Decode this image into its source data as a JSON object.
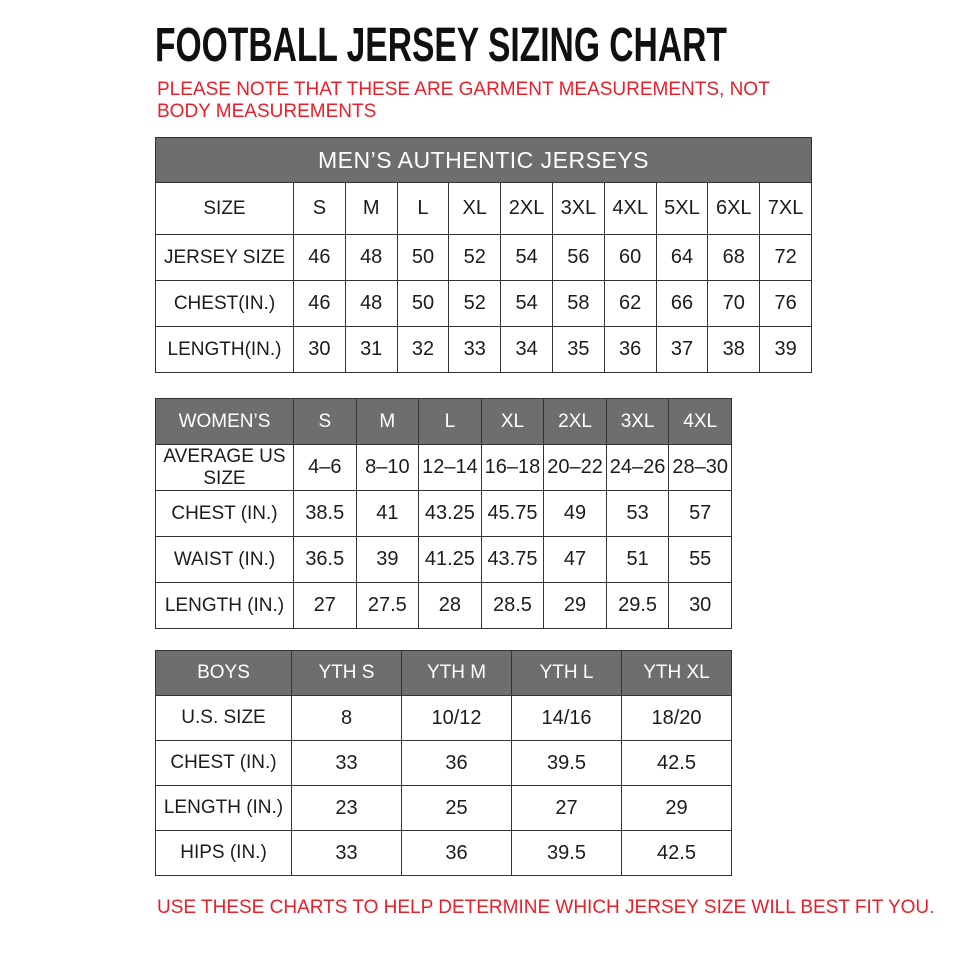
{
  "page": {
    "title": "FOOTBALL JERSEY SIZING CHART",
    "note": "PLEASE NOTE THAT THESE ARE GARMENT MEASUREMENTS, NOT BODY MEASUREMENTS",
    "footer": "USE THESE CHARTS TO HELP DETERMINE WHICH JERSEY SIZE WILL BEST FIT YOU.",
    "colors": {
      "accent_red": "#e8202a",
      "header_gray": "#6e6e6e",
      "border": "#333333",
      "text": "#1c1c1c"
    }
  },
  "tables": {
    "mens": {
      "title": "MEN’S AUTHENTIC JERSEYS",
      "head_style": "plain",
      "head": [
        "SIZE",
        "S",
        "M",
        "L",
        "XL",
        "2XL",
        "3XL",
        "4XL",
        "5XL",
        "6XL",
        "7XL"
      ],
      "rows": [
        {
          "label": "JERSEY SIZE",
          "values": [
            "46",
            "48",
            "50",
            "52",
            "54",
            "56",
            "60",
            "64",
            "68",
            "72"
          ]
        },
        {
          "label": "CHEST(IN.)",
          "values": [
            "46",
            "48",
            "50",
            "52",
            "54",
            "58",
            "62",
            "66",
            "70",
            "76"
          ]
        },
        {
          "label": "LENGTH(IN.)",
          "values": [
            "30",
            "31",
            "32",
            "33",
            "34",
            "35",
            "36",
            "37",
            "38",
            "39"
          ]
        }
      ]
    },
    "womens": {
      "head_style": "gray",
      "head": [
        "WOMEN’S",
        "S",
        "M",
        "L",
        "XL",
        "2XL",
        "3XL",
        "4XL"
      ],
      "rows": [
        {
          "label": "AVERAGE US SIZE",
          "values": [
            "4–6",
            "8–10",
            "12–14",
            "16–18",
            "20–22",
            "24–26",
            "28–30"
          ]
        },
        {
          "label": "CHEST (IN.)",
          "values": [
            "38.5",
            "41",
            "43.25",
            "45.75",
            "49",
            "53",
            "57"
          ]
        },
        {
          "label": "WAIST (IN.)",
          "values": [
            "36.5",
            "39",
            "41.25",
            "43.75",
            "47",
            "51",
            "55"
          ]
        },
        {
          "label": "LENGTH (IN.)",
          "values": [
            "27",
            "27.5",
            "28",
            "28.5",
            "29",
            "29.5",
            "30"
          ]
        }
      ]
    },
    "boys": {
      "head_style": "gray",
      "head": [
        "BOYS",
        "YTH S",
        "YTH M",
        "YTH L",
        "YTH XL"
      ],
      "rows": [
        {
          "label": "U.S. SIZE",
          "values": [
            "8",
            "10/12",
            "14/16",
            "18/20"
          ]
        },
        {
          "label": "CHEST (IN.)",
          "values": [
            "33",
            "36",
            "39.5",
            "42.5"
          ]
        },
        {
          "label": "LENGTH (IN.)",
          "values": [
            "23",
            "25",
            "27",
            "29"
          ]
        },
        {
          "label": "HIPS (IN.)",
          "values": [
            "33",
            "36",
            "39.5",
            "42.5"
          ]
        }
      ]
    }
  }
}
